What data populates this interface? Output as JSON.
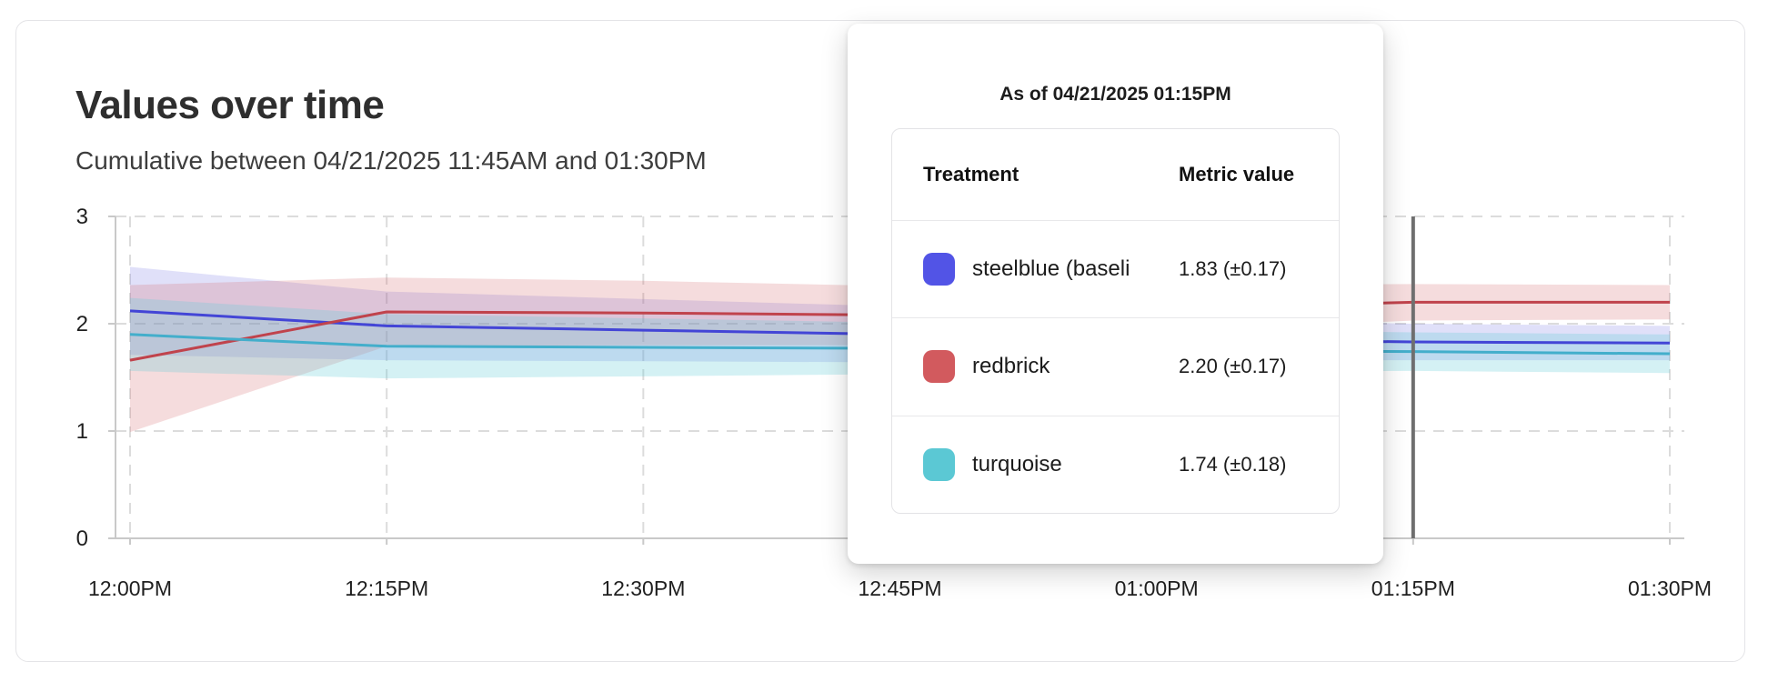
{
  "header": {
    "title": "Values over time",
    "subtitle": "Cumulative between 04/21/2025 11:45AM and 01:30PM"
  },
  "tooltip": {
    "title": "As of 04/21/2025 01:15PM",
    "columns": {
      "treatment": "Treatment",
      "metric": "Metric value"
    },
    "rows": [
      {
        "name": "steelblue  (baseli",
        "value": "1.83 (±0.17)",
        "color": "#5254e6"
      },
      {
        "name": "redbrick",
        "value": "2.20 (±0.17)",
        "color": "#d25a5e"
      },
      {
        "name": "turquoise",
        "value": "1.74 (±0.18)",
        "color": "#5bc8d4"
      }
    ]
  },
  "chart_data": {
    "type": "line",
    "title": "Values over time",
    "xlabel": "",
    "ylabel": "",
    "x_tick_labels": [
      "12:00PM",
      "12:15PM",
      "12:30PM",
      "12:45PM",
      "01:00PM",
      "01:15PM",
      "01:30PM"
    ],
    "x_minutes": [
      0,
      15,
      30,
      45,
      60,
      75,
      90
    ],
    "y_ticks": [
      0,
      1,
      2,
      3
    ],
    "ylim": [
      0,
      3
    ],
    "grid": "dashed",
    "legend_position": "none",
    "hover": {
      "x_label": "01:15PM",
      "x_minute": 75,
      "line_color": "#6f6f6f"
    },
    "series": [
      {
        "name": "steelblue (baseline)",
        "line_color": "#4345d6",
        "band_color": "rgba(99,99,226,0.20)",
        "values": [
          2.12,
          1.98,
          1.94,
          1.9,
          1.86,
          1.83,
          1.82
        ],
        "upper": [
          2.53,
          2.3,
          2.23,
          2.16,
          2.05,
          2.0,
          1.98
        ],
        "lower": [
          1.71,
          1.66,
          1.65,
          1.64,
          1.66,
          1.66,
          1.66
        ]
      },
      {
        "name": "redbrick",
        "line_color": "#c0434c",
        "band_color": "rgba(208,95,100,0.22)",
        "values": [
          1.66,
          2.11,
          2.1,
          2.08,
          2.14,
          2.2,
          2.2
        ],
        "upper": [
          2.36,
          2.43,
          2.4,
          2.35,
          2.36,
          2.37,
          2.36
        ],
        "lower": [
          0.99,
          1.79,
          1.8,
          1.8,
          1.92,
          2.03,
          2.04
        ]
      },
      {
        "name": "turquoise",
        "line_color": "#43aecb",
        "band_color": "rgba(100,205,215,0.28)",
        "values": [
          1.9,
          1.79,
          1.78,
          1.77,
          1.75,
          1.74,
          1.72
        ],
        "upper": [
          2.24,
          2.09,
          2.05,
          2.01,
          1.95,
          1.92,
          1.9
        ],
        "lower": [
          1.56,
          1.49,
          1.51,
          1.53,
          1.55,
          1.56,
          1.54
        ]
      }
    ]
  }
}
